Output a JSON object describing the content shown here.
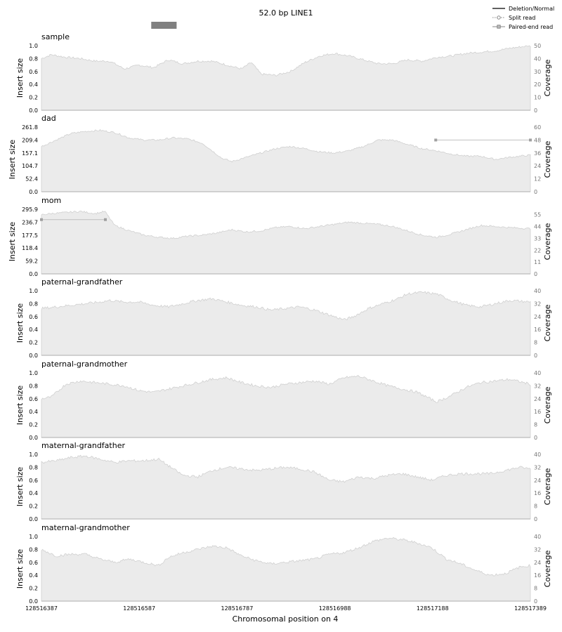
{
  "figure": {
    "title": "52.0 bp LINE1",
    "xlabel": "Chromosomal position on 4",
    "legend": {
      "placement": "top-right",
      "items": [
        "Deletion/Normal",
        "Split read",
        "Paired-end read"
      ]
    },
    "colors": {
      "coverage_fill": "#ebebeb",
      "coverage_line": "#d0d0d0",
      "event_bar": "#808080",
      "paired_read": "#a0a0a0",
      "axis_text_right": "#777777"
    }
  },
  "chart_data": {
    "type": "area",
    "x_ticks": [
      "128516387",
      "128516587",
      "128516787",
      "128516988",
      "128517188",
      "128517389"
    ],
    "x_range": [
      128516387,
      128517389
    ],
    "event": {
      "start": 128516612,
      "end": 128516664,
      "label": "52.0 bp LINE1"
    },
    "panels": [
      {
        "name": "sample",
        "ylabel_left": "Insert size",
        "ylabel_right": "Coverage",
        "left_ticks": [
          "0.0",
          "0.2",
          "0.4",
          "0.6",
          "0.8",
          "1.0"
        ],
        "right_ticks": [
          "0",
          "10",
          "20",
          "30",
          "40",
          "50"
        ],
        "coverage_max": 50,
        "coverage_profile": [
          [
            128516387,
            40
          ],
          [
            128516407,
            43
          ],
          [
            128516437,
            41
          ],
          [
            128516467,
            40
          ],
          [
            128516497,
            38
          ],
          [
            128516527,
            38
          ],
          [
            128516557,
            32
          ],
          [
            128516587,
            35
          ],
          [
            128516617,
            33
          ],
          [
            128516647,
            39
          ],
          [
            128516677,
            36
          ],
          [
            128516707,
            38
          ],
          [
            128516737,
            38
          ],
          [
            128516767,
            35
          ],
          [
            128516797,
            32
          ],
          [
            128516817,
            37
          ],
          [
            128516837,
            28
          ],
          [
            128516867,
            27
          ],
          [
            128516897,
            30
          ],
          [
            128516927,
            37
          ],
          [
            128516957,
            42
          ],
          [
            128516987,
            44
          ],
          [
            128517017,
            42
          ],
          [
            128517047,
            39
          ],
          [
            128517077,
            36
          ],
          [
            128517107,
            36
          ],
          [
            128517137,
            39
          ],
          [
            128517167,
            38
          ],
          [
            128517197,
            41
          ],
          [
            128517227,
            42
          ],
          [
            128517257,
            44
          ],
          [
            128517287,
            45
          ],
          [
            128517317,
            46
          ],
          [
            128517347,
            48
          ],
          [
            128517389,
            50
          ]
        ],
        "paired_reads": []
      },
      {
        "name": "dad",
        "ylabel_left": "Insert size",
        "ylabel_right": "Coverage",
        "left_ticks": [
          "0.0",
          "52.4",
          "104.7",
          "157.1",
          "209.4",
          "261.8"
        ],
        "right_ticks": [
          "0",
          "12",
          "24",
          "36",
          "48",
          "60"
        ],
        "coverage_max": 60,
        "coverage_profile": [
          [
            128516387,
            42
          ],
          [
            128516417,
            48
          ],
          [
            128516447,
            54
          ],
          [
            128516477,
            56
          ],
          [
            128516507,
            57
          ],
          [
            128516537,
            55
          ],
          [
            128516567,
            50
          ],
          [
            128516597,
            48
          ],
          [
            128516627,
            48
          ],
          [
            128516657,
            50
          ],
          [
            128516687,
            49
          ],
          [
            128516717,
            45
          ],
          [
            128516737,
            38
          ],
          [
            128516757,
            31
          ],
          [
            128516777,
            28
          ],
          [
            128516807,
            32
          ],
          [
            128516837,
            36
          ],
          [
            128516867,
            40
          ],
          [
            128516897,
            42
          ],
          [
            128516927,
            40
          ],
          [
            128516957,
            37
          ],
          [
            128516987,
            36
          ],
          [
            128517017,
            38
          ],
          [
            128517047,
            42
          ],
          [
            128517077,
            48
          ],
          [
            128517107,
            48
          ],
          [
            128517137,
            44
          ],
          [
            128517167,
            40
          ],
          [
            128517197,
            38
          ],
          [
            128517227,
            35
          ],
          [
            128517257,
            33
          ],
          [
            128517287,
            33
          ],
          [
            128517317,
            30
          ],
          [
            128517347,
            32
          ],
          [
            128517389,
            34
          ]
        ],
        "paired_reads": [
          {
            "start": 128517195,
            "end": 128517389,
            "insert_size": 209.4
          }
        ]
      },
      {
        "name": "mom",
        "ylabel_left": "Insert size",
        "ylabel_right": "Coverage",
        "left_ticks": [
          "0.0",
          "59.2",
          "118.4",
          "177.5",
          "236.7",
          "295.9"
        ],
        "right_ticks": [
          "0",
          "11",
          "22",
          "33",
          "44",
          "55"
        ],
        "coverage_max": 60,
        "coverage_profile": [
          [
            128516387,
            55
          ],
          [
            128516407,
            56
          ],
          [
            128516437,
            57
          ],
          [
            128516467,
            58
          ],
          [
            128516497,
            56
          ],
          [
            128516517,
            58
          ],
          [
            128516537,
            45
          ],
          [
            128516567,
            40
          ],
          [
            128516597,
            36
          ],
          [
            128516627,
            34
          ],
          [
            128516657,
            33
          ],
          [
            128516687,
            35
          ],
          [
            128516717,
            36
          ],
          [
            128516747,
            38
          ],
          [
            128516777,
            41
          ],
          [
            128516807,
            39
          ],
          [
            128516837,
            40
          ],
          [
            128516867,
            43
          ],
          [
            128516897,
            44
          ],
          [
            128516927,
            42
          ],
          [
            128516957,
            44
          ],
          [
            128516987,
            46
          ],
          [
            128517017,
            48
          ],
          [
            128517047,
            47
          ],
          [
            128517077,
            46
          ],
          [
            128517107,
            44
          ],
          [
            128517137,
            40
          ],
          [
            128517167,
            36
          ],
          [
            128517197,
            34
          ],
          [
            128517227,
            37
          ],
          [
            128517257,
            41
          ],
          [
            128517287,
            45
          ],
          [
            128517317,
            44
          ],
          [
            128517347,
            43
          ],
          [
            128517389,
            42
          ]
        ],
        "paired_reads": [
          {
            "start": 128516387,
            "end": 128516518,
            "insert_size": 248.5
          }
        ]
      },
      {
        "name": "paternal-grandfather",
        "ylabel_left": "Insert size",
        "ylabel_right": "Coverage",
        "left_ticks": [
          "0.0",
          "0.2",
          "0.4",
          "0.6",
          "0.8",
          "1.0"
        ],
        "right_ticks": [
          "0",
          "8",
          "16",
          "24",
          "32",
          "40"
        ],
        "coverage_max": 40,
        "coverage_profile": [
          [
            128516387,
            29
          ],
          [
            128516417,
            30
          ],
          [
            128516447,
            31
          ],
          [
            128516477,
            32
          ],
          [
            128516507,
            33
          ],
          [
            128516527,
            34
          ],
          [
            128516557,
            33
          ],
          [
            128516587,
            33
          ],
          [
            128516617,
            31
          ],
          [
            128516647,
            30
          ],
          [
            128516677,
            32
          ],
          [
            128516707,
            34
          ],
          [
            128516737,
            35
          ],
          [
            128516767,
            33
          ],
          [
            128516797,
            31
          ],
          [
            128516827,
            30
          ],
          [
            128516857,
            28
          ],
          [
            128516887,
            29
          ],
          [
            128516917,
            30
          ],
          [
            128516947,
            28
          ],
          [
            128516977,
            25
          ],
          [
            128517007,
            22
          ],
          [
            128517027,
            24
          ],
          [
            128517057,
            29
          ],
          [
            128517087,
            32
          ],
          [
            128517117,
            35
          ],
          [
            128517137,
            38
          ],
          [
            128517167,
            39
          ],
          [
            128517197,
            38
          ],
          [
            128517227,
            34
          ],
          [
            128517257,
            31
          ],
          [
            128517287,
            30
          ],
          [
            128517317,
            32
          ],
          [
            128517347,
            34
          ],
          [
            128517389,
            33
          ]
        ],
        "paired_reads": []
      },
      {
        "name": "paternal-grandmother",
        "ylabel_left": "Insert size",
        "ylabel_right": "Coverage",
        "left_ticks": [
          "0.0",
          "0.2",
          "0.4",
          "0.6",
          "0.8",
          "1.0"
        ],
        "right_ticks": [
          "0",
          "8",
          "16",
          "24",
          "32",
          "40"
        ],
        "coverage_max": 40,
        "coverage_profile": [
          [
            128516387,
            24
          ],
          [
            128516407,
            25
          ],
          [
            128516437,
            33
          ],
          [
            128516467,
            35
          ],
          [
            128516497,
            34
          ],
          [
            128516527,
            33
          ],
          [
            128516557,
            32
          ],
          [
            128516587,
            29
          ],
          [
            128516617,
            28
          ],
          [
            128516647,
            30
          ],
          [
            128516677,
            32
          ],
          [
            128516707,
            34
          ],
          [
            128516737,
            36
          ],
          [
            128516767,
            37
          ],
          [
            128516797,
            34
          ],
          [
            128516827,
            32
          ],
          [
            128516857,
            31
          ],
          [
            128516887,
            33
          ],
          [
            128516917,
            34
          ],
          [
            128516947,
            35
          ],
          [
            128516977,
            33
          ],
          [
            128517007,
            37
          ],
          [
            128517037,
            38
          ],
          [
            128517067,
            35
          ],
          [
            128517097,
            32
          ],
          [
            128517127,
            30
          ],
          [
            128517157,
            28
          ],
          [
            128517177,
            25
          ],
          [
            128517197,
            22
          ],
          [
            128517227,
            26
          ],
          [
            128517257,
            31
          ],
          [
            128517287,
            34
          ],
          [
            128517317,
            35
          ],
          [
            128517347,
            36
          ],
          [
            128517389,
            33
          ]
        ],
        "paired_reads": []
      },
      {
        "name": "maternal-grandfather",
        "ylabel_left": "Insert size",
        "ylabel_right": "Coverage",
        "left_ticks": [
          "0.0",
          "0.2",
          "0.4",
          "0.6",
          "0.8",
          "1.0"
        ],
        "right_ticks": [
          "0",
          "8",
          "16",
          "24",
          "32",
          "40"
        ],
        "coverage_max": 40,
        "coverage_profile": [
          [
            128516387,
            35
          ],
          [
            128516417,
            36
          ],
          [
            128516447,
            38
          ],
          [
            128516477,
            39
          ],
          [
            128516507,
            37
          ],
          [
            128516537,
            35
          ],
          [
            128516567,
            36
          ],
          [
            128516597,
            36
          ],
          [
            128516627,
            37
          ],
          [
            128516647,
            33
          ],
          [
            128516677,
            27
          ],
          [
            128516707,
            26
          ],
          [
            128516737,
            30
          ],
          [
            128516767,
            32
          ],
          [
            128516797,
            31
          ],
          [
            128516827,
            30
          ],
          [
            128516857,
            31
          ],
          [
            128516887,
            32
          ],
          [
            128516917,
            31
          ],
          [
            128516947,
            29
          ],
          [
            128516977,
            24
          ],
          [
            128517007,
            23
          ],
          [
            128517037,
            26
          ],
          [
            128517067,
            25
          ],
          [
            128517097,
            27
          ],
          [
            128517127,
            28
          ],
          [
            128517157,
            26
          ],
          [
            128517187,
            24
          ],
          [
            128517217,
            27
          ],
          [
            128517247,
            28
          ],
          [
            128517277,
            28
          ],
          [
            128517307,
            28
          ],
          [
            128517337,
            30
          ],
          [
            128517367,
            32
          ],
          [
            128517389,
            31
          ]
        ],
        "paired_reads": []
      },
      {
        "name": "maternal-grandmother",
        "ylabel_left": "Insert size",
        "ylabel_right": "Coverage",
        "left_ticks": [
          "0.0",
          "0.2",
          "0.4",
          "0.6",
          "0.8",
          "1.0"
        ],
        "right_ticks": [
          "0",
          "8",
          "16",
          "24",
          "32",
          "40"
        ],
        "coverage_max": 40,
        "coverage_profile": [
          [
            128516387,
            32
          ],
          [
            128516417,
            28
          ],
          [
            128516447,
            29
          ],
          [
            128516477,
            29
          ],
          [
            128516507,
            26
          ],
          [
            128516537,
            24
          ],
          [
            128516567,
            26
          ],
          [
            128516597,
            24
          ],
          [
            128516627,
            22
          ],
          [
            128516647,
            27
          ],
          [
            128516677,
            30
          ],
          [
            128516707,
            32
          ],
          [
            128516737,
            34
          ],
          [
            128516767,
            33
          ],
          [
            128516797,
            28
          ],
          [
            128516827,
            25
          ],
          [
            128516857,
            23
          ],
          [
            128516887,
            24
          ],
          [
            128516917,
            25
          ],
          [
            128516947,
            26
          ],
          [
            128516977,
            29
          ],
          [
            128517007,
            30
          ],
          [
            128517037,
            33
          ],
          [
            128517067,
            37
          ],
          [
            128517097,
            39
          ],
          [
            128517127,
            38
          ],
          [
            128517157,
            36
          ],
          [
            128517187,
            33
          ],
          [
            128517217,
            26
          ],
          [
            128517247,
            23
          ],
          [
            128517277,
            19
          ],
          [
            128517307,
            16
          ],
          [
            128517337,
            17
          ],
          [
            128517367,
            21
          ],
          [
            128517389,
            22
          ]
        ],
        "paired_reads": []
      }
    ]
  }
}
